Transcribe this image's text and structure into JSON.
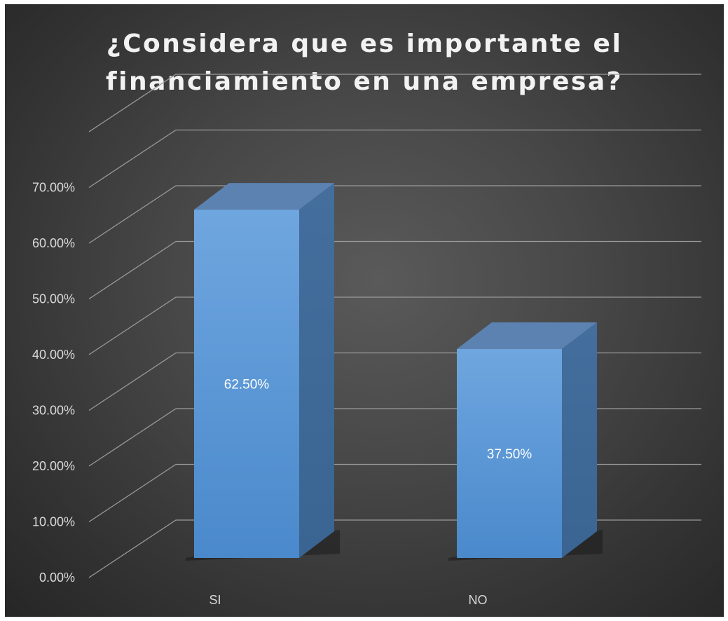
{
  "chart_data": {
    "type": "bar",
    "title_lines": [
      "¿Considera que es importante el",
      "financiamiento en una empresa?"
    ],
    "categories": [
      "SI",
      "NO"
    ],
    "values": [
      62.5,
      37.5
    ],
    "data_labels": [
      "62.50%",
      "37.50%"
    ],
    "yticks": [
      "0.00%",
      "10.00%",
      "20.00%",
      "30.00%",
      "40.00%",
      "50.00%",
      "60.00%",
      "70.00%"
    ],
    "ylim": [
      0,
      80
    ],
    "xlabel": "",
    "ylabel": "",
    "grid": true,
    "legend": "none",
    "three_d": true,
    "colors": {
      "bar_front": "#5b9bd5",
      "bar_top": "#5b82b0",
      "bar_side": "#3a6491",
      "background": "#404040",
      "gridline": "#9a9a9a",
      "text": "#d9d9d9"
    }
  }
}
